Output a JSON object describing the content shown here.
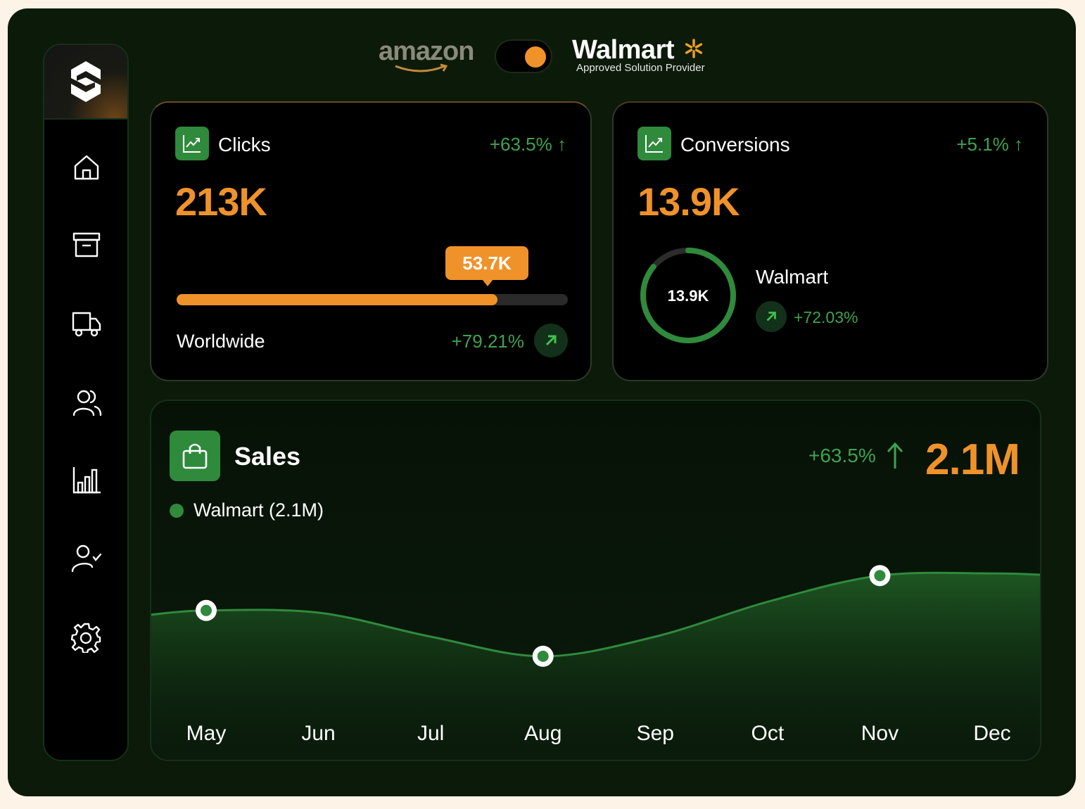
{
  "colors": {
    "accent": "#f0922a",
    "green": "#2f8a3c",
    "positive": "#3fa24d"
  },
  "brands": {
    "amazon": "amazon",
    "walmart": "Walmart",
    "walmart_sub": "Approved Solution Provider",
    "toggle_state": "on"
  },
  "sidebar": {
    "icons": [
      "app-logo-icon",
      "home-icon",
      "archive-icon",
      "truck-icon",
      "users-icon",
      "bar-chart-icon",
      "user-check-icon",
      "gear-icon"
    ]
  },
  "clicks": {
    "title": "Clicks",
    "delta": "+63.5% ↑",
    "value": "213K",
    "tooltip": "53.7K",
    "progress": 0.82,
    "region": "Worldwide",
    "region_delta": "+79.21%"
  },
  "conversions": {
    "title": "Conversions",
    "delta": "+5.1% ↑",
    "value": "13.9K",
    "ring_value": "13.9K",
    "ring_fraction": 0.86,
    "channel": "Walmart",
    "channel_delta": "+72.03%"
  },
  "sales": {
    "title": "Sales",
    "legend": "Walmart (2.1M)",
    "delta": "+63.5%",
    "total": "2.1M"
  },
  "chart_data": {
    "type": "area",
    "title": "Sales",
    "x": [
      "May",
      "Jun",
      "Jul",
      "Aug",
      "Sep",
      "Oct",
      "Nov",
      "Dec"
    ],
    "series": [
      {
        "name": "Walmart (2.1M)",
        "values": [
          0.62,
          0.61,
          0.5,
          0.41,
          0.5,
          0.66,
          0.78,
          0.79
        ]
      }
    ],
    "highlighted_points": [
      {
        "x": "May",
        "value": 0.62
      },
      {
        "x": "Aug",
        "value": 0.41
      },
      {
        "x": "Nov",
        "value": 0.78
      }
    ],
    "ylim": [
      0,
      1
    ],
    "grid": false,
    "legend": "top-left"
  }
}
